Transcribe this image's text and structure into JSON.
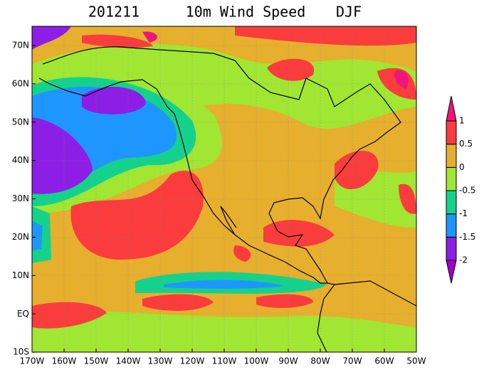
{
  "title": {
    "date": "201211",
    "variable": "10m Wind Speed",
    "season": "DJF"
  },
  "map": {
    "lat_ticks": [
      "70N",
      "60N",
      "50N",
      "40N",
      "30N",
      "20N",
      "10N",
      "EQ",
      "10S"
    ],
    "lon_ticks": [
      "170W",
      "160W",
      "150W",
      "140W",
      "130W",
      "120W",
      "110W",
      "100W",
      "90W",
      "80W",
      "70W",
      "60W",
      "50W"
    ]
  },
  "colorbar": {
    "levels": [
      -2,
      -1.5,
      -1,
      -0.5,
      0,
      0.5,
      1
    ],
    "colors": [
      "#a000c8",
      "#8c1ee6",
      "#1e96ff",
      "#14d28c",
      "#a0e632",
      "#e6af2d",
      "#fa3c3c",
      "#f0147d"
    ]
  }
}
